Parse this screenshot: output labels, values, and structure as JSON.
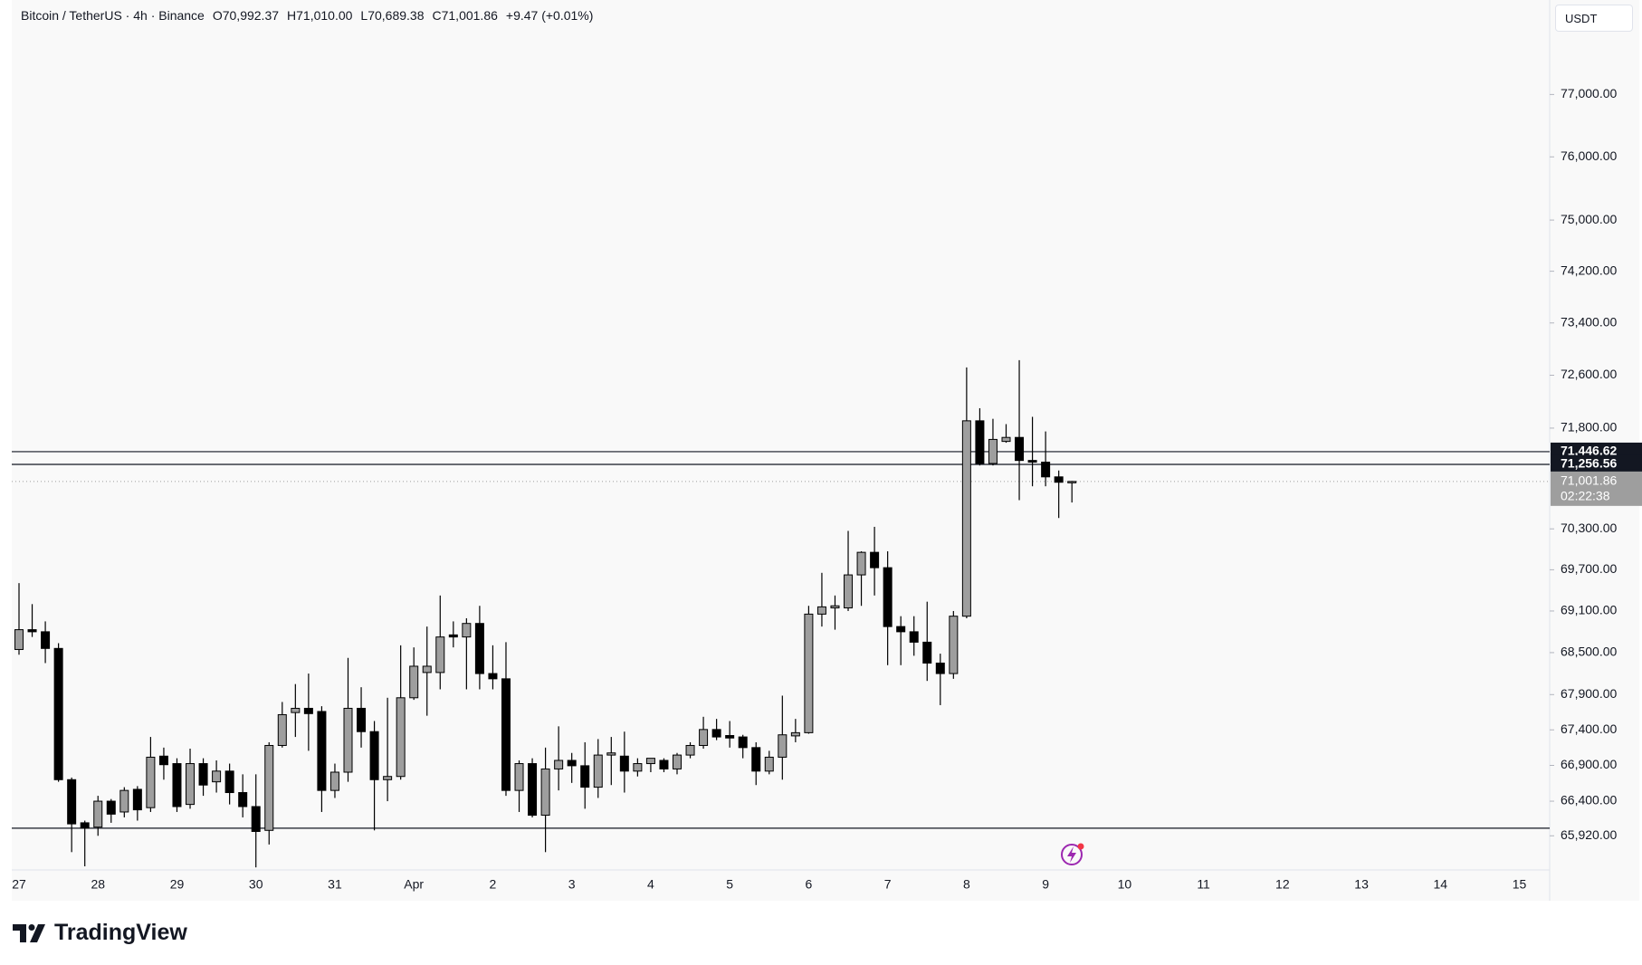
{
  "header": {
    "symbol": "Bitcoin / TetherUS · 4h · Binance",
    "open": "O70,992.37",
    "high": "H71,010.00",
    "low": "L70,689.38",
    "close": "C71,001.86",
    "change": "+9.47 (+0.01%)",
    "currency": "USDT"
  },
  "brand": "TradingView",
  "chart_data": {
    "type": "candlestick",
    "log_scale": true,
    "ylim": [
      65450,
      78540
    ],
    "yticks": [
      {
        "value": 77000,
        "label": "77,000.00"
      },
      {
        "value": 76000,
        "label": "76,000.00"
      },
      {
        "value": 75000,
        "label": "75,000.00"
      },
      {
        "value": 74200,
        "label": "74,200.00"
      },
      {
        "value": 73400,
        "label": "73,400.00"
      },
      {
        "value": 72600,
        "label": "72,600.00"
      },
      {
        "value": 71800,
        "label": "71,800.00"
      },
      {
        "value": 70300,
        "label": "70,300.00"
      },
      {
        "value": 69700,
        "label": "69,700.00"
      },
      {
        "value": 69100,
        "label": "69,100.00"
      },
      {
        "value": 68500,
        "label": "68,500.00"
      },
      {
        "value": 67900,
        "label": "67,900.00"
      },
      {
        "value": 67400,
        "label": "67,400.00"
      },
      {
        "value": 66900,
        "label": "66,900.00"
      },
      {
        "value": 66400,
        "label": "66,400.00"
      },
      {
        "value": 65920,
        "label": "65,920.00"
      }
    ],
    "categories": [
      "27",
      null,
      null,
      null,
      null,
      null,
      "28",
      null,
      null,
      null,
      null,
      null,
      "29",
      null,
      null,
      null,
      null,
      null,
      "30",
      null,
      null,
      null,
      null,
      null,
      "31",
      null,
      null,
      null,
      null,
      null,
      "Apr",
      null,
      null,
      null,
      null,
      null,
      "2",
      null,
      null,
      null,
      null,
      null,
      "3",
      null,
      null,
      null,
      null,
      null,
      "4",
      null,
      null,
      null,
      null,
      null,
      "5",
      null,
      null,
      null,
      null,
      null,
      "6",
      null,
      null,
      null,
      null,
      null,
      "7",
      null,
      null,
      null,
      null,
      null,
      "8",
      null,
      null,
      null,
      null,
      null,
      "9",
      null,
      null,
      null,
      null,
      null,
      "10",
      null,
      null,
      null,
      null,
      null,
      "11",
      null,
      null,
      null,
      null,
      null,
      "12",
      null,
      null,
      null,
      null,
      null,
      "13",
      null,
      null,
      null,
      null,
      null,
      "14",
      null,
      null,
      null,
      null,
      null,
      "15",
      null,
      null
    ],
    "open": [
      68545,
      68830,
      68800,
      68560,
      66700,
      66100,
      66040,
      66400,
      66250,
      66565,
      66310,
      67030,
      66925,
      66355,
      66925,
      66670,
      66820,
      66520,
      66325,
      65995,
      67180,
      67645,
      67705,
      67660,
      66550,
      66805,
      67705,
      67375,
      66700,
      66745,
      67855,
      68215,
      68215,
      68755,
      68725,
      68920,
      68200,
      68125,
      66550,
      66925,
      66205,
      66850,
      66970,
      66895,
      66595,
      67045,
      67030,
      66820,
      66925,
      66970,
      66850,
      67045,
      67180,
      67405,
      67320,
      67300,
      67150,
      66820,
      67015,
      67315,
      67360,
      69055,
      69145,
      69145,
      69625,
      69955,
      69730,
      68875,
      68800,
      68650,
      68350,
      68200,
      69025,
      71910,
      71270,
      71600,
      71660,
      71315,
      71290,
      71070,
      70992.37,
      null,
      null,
      null,
      null,
      null,
      null,
      null,
      null,
      null,
      null,
      null,
      null,
      null,
      null,
      null,
      null,
      null,
      null,
      null,
      null,
      null,
      null,
      null,
      null,
      null,
      null,
      null,
      null,
      null,
      null,
      null,
      null,
      null,
      null,
      null,
      null
    ],
    "high": [
      69505,
      69200,
      68950,
      68635,
      66730,
      66130,
      66475,
      66430,
      66595,
      66610,
      67300,
      67150,
      67000,
      67135,
      67000,
      66970,
      66925,
      66775,
      66775,
      67225,
      67795,
      68050,
      68200,
      67735,
      66925,
      68425,
      68005,
      67525,
      67855,
      68605,
      68575,
      68875,
      69325,
      68950,
      68995,
      69175,
      68605,
      68650,
      66970,
      67000,
      67150,
      67450,
      67075,
      67225,
      67270,
      67300,
      67375,
      67000,
      67000,
      67000,
      67075,
      67225,
      67585,
      67555,
      67525,
      67330,
      67225,
      67105,
      67885,
      67555,
      69175,
      69655,
      69325,
      70270,
      69970,
      70330,
      69970,
      69025,
      69025,
      69235,
      68485,
      69100,
      72720,
      72100,
      71940,
      71860,
      72830,
      71970,
      71750,
      71165,
      71010,
      null,
      null,
      null,
      null,
      null,
      null,
      null,
      null,
      null,
      null,
      null,
      null,
      null,
      null,
      null,
      null,
      null,
      null,
      null,
      null,
      null,
      null,
      null,
      null,
      null,
      null,
      null,
      null,
      null,
      null,
      null,
      null,
      null,
      null,
      null,
      null
    ],
    "low": [
      68470,
      68725,
      68350,
      66670,
      65695,
      65500,
      65920,
      66100,
      66175,
      66130,
      66250,
      66700,
      66250,
      66295,
      66475,
      66520,
      66355,
      66175,
      65485,
      65800,
      67150,
      67300,
      67105,
      66250,
      66445,
      66670,
      67150,
      65995,
      66400,
      66700,
      67825,
      67600,
      67975,
      68575,
      67975,
      67975,
      67975,
      66475,
      66250,
      66175,
      65695,
      66550,
      66655,
      66295,
      66445,
      66625,
      66520,
      66745,
      66805,
      66805,
      66775,
      67000,
      67135,
      67255,
      67150,
      67000,
      66625,
      66775,
      66700,
      67225,
      67345,
      68875,
      68830,
      69100,
      69175,
      69325,
      68320,
      68320,
      68455,
      68095,
      67750,
      68125,
      68995,
      71240,
      71240,
      71580,
      70725,
      70930,
      70930,
      70460,
      70689.38,
      null,
      null,
      null,
      null,
      null,
      null,
      null,
      null,
      null,
      null,
      null,
      null,
      null,
      null,
      null,
      null,
      null,
      null,
      null,
      null,
      null,
      null,
      null,
      null,
      null,
      null,
      null,
      null,
      null,
      null,
      null,
      null,
      null,
      null,
      null,
      null
    ],
    "close": [
      68830,
      68800,
      68560,
      66700,
      66085,
      66025,
      66400,
      66220,
      66550,
      66280,
      67015,
      66910,
      66325,
      66925,
      66625,
      66820,
      66520,
      66325,
      65980,
      67180,
      67615,
      67705,
      67630,
      66550,
      66805,
      67705,
      67375,
      66700,
      66745,
      67855,
      68305,
      68305,
      68725,
      68725,
      68920,
      68200,
      68125,
      66550,
      66925,
      66205,
      66850,
      66970,
      66895,
      66595,
      67045,
      67075,
      66820,
      66925,
      67000,
      66850,
      67045,
      67180,
      67405,
      67300,
      67285,
      67150,
      66820,
      67015,
      67330,
      67360,
      69055,
      69160,
      69175,
      69625,
      69955,
      69730,
      68875,
      68800,
      68650,
      68350,
      68200,
      69025,
      71910,
      71270,
      71630,
      71660,
      71315,
      71290,
      71070,
      70990,
      71001.86,
      null,
      null,
      null,
      null,
      null,
      null,
      null,
      null,
      null,
      null,
      null,
      null,
      null,
      null,
      null,
      null,
      null,
      null,
      null,
      null,
      null,
      null,
      null,
      null,
      null,
      null,
      null,
      null,
      null,
      null,
      null,
      null,
      null,
      null,
      null,
      null
    ],
    "up_color": "#9e9e9e",
    "down_color": "#000000",
    "hlines": [
      {
        "value": 71446.62,
        "label": "71,446.62"
      },
      {
        "value": 71256.56,
        "label": "71,256.56"
      },
      66025
    ],
    "last_price": {
      "value": 71001.86,
      "label": "71,001.86"
    },
    "countdown": "02:22:38"
  }
}
